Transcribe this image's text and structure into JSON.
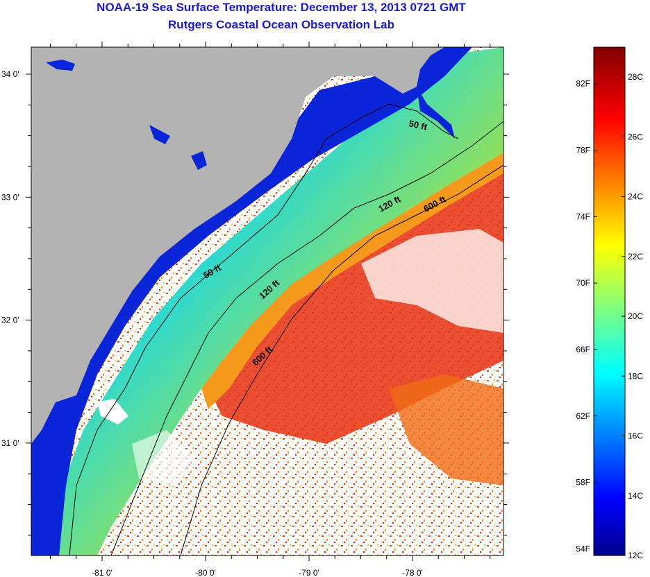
{
  "title": {
    "line1": "NOAA-19 Sea Surface Temperature:  December 13, 2013 0721 GMT",
    "line2": "Rutgers Coastal Ocean Observation Lab"
  },
  "map": {
    "lat_ticks": [
      {
        "value": 34,
        "label": "34 0'"
      },
      {
        "value": 33,
        "label": "33 0'"
      },
      {
        "value": 32,
        "label": "32 0'"
      },
      {
        "value": 31,
        "label": "31 0'"
      }
    ],
    "lon_ticks": [
      {
        "value": -81,
        "label": "-81 0'"
      },
      {
        "value": -80,
        "label": "-80 0'"
      },
      {
        "value": -79,
        "label": "-79 0'"
      },
      {
        "value": -78,
        "label": "-78 0'"
      }
    ],
    "contour_labels": [
      "50 ft",
      "50 ft",
      "120 ft",
      "120 ft",
      "600 ft",
      "600 ft"
    ],
    "colors": {
      "land": "#b3b3b3",
      "cloud": "#ffffff",
      "coastal_cold": "#0a1fd6",
      "shelf_mid": "#22d4e6",
      "shelf_warm": "#f0e020",
      "gulf_stream": "#f02a10"
    }
  },
  "colorbar": {
    "f_labels": [
      "82F",
      "78F",
      "74F",
      "70F",
      "66F",
      "62F",
      "58F",
      "54F"
    ],
    "c_labels": [
      "28C",
      "26C",
      "24C",
      "22C",
      "20C",
      "18C",
      "16C",
      "14C",
      "12C"
    ],
    "range_c": [
      12,
      29
    ]
  }
}
